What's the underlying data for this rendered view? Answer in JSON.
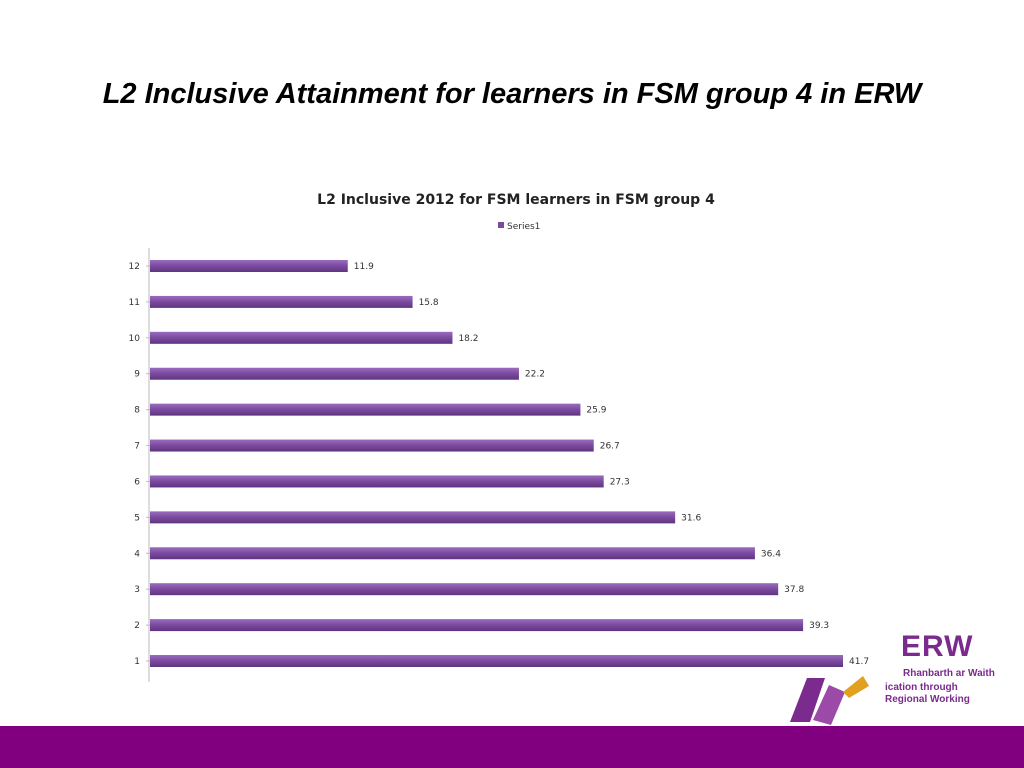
{
  "slide": {
    "title": "L2 Inclusive Attainment for learners in FSM group 4 in ERW"
  },
  "chart_data": {
    "type": "bar",
    "orientation": "horizontal",
    "title": "L2 Inclusive 2012 for FSM learners in FSM group 4",
    "categories": [
      "1",
      "2",
      "3",
      "4",
      "5",
      "6",
      "7",
      "8",
      "9",
      "10",
      "11",
      "12"
    ],
    "series": [
      {
        "name": "Series1",
        "color": "#7b4a9e",
        "values": [
          41.7,
          39.3,
          37.8,
          36.4,
          31.6,
          27.3,
          26.7,
          25.9,
          22.2,
          18.2,
          15.8,
          11.9
        ]
      }
    ],
    "xlim": [
      0,
      45
    ],
    "data_labels": true,
    "legend_position": "top",
    "grid": false
  },
  "logo": {
    "wordmark": "ERW",
    "line1": "Rhanbarth ar Waith",
    "line2": "ication through",
    "line3": "Regional Working",
    "color": "#7b2a8e"
  },
  "footer": {
    "color": "#800080"
  }
}
